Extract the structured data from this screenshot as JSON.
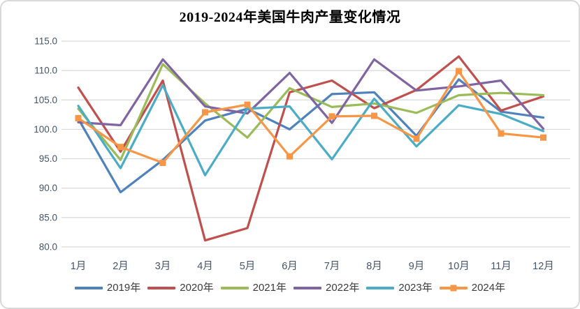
{
  "window": {
    "background_color": "#FFFFFF",
    "border_color": "#D9D9D9"
  },
  "chart_data": {
    "type": "line",
    "title": "2019-2024年美国牛肉产量变化情况",
    "categories": [
      "1月",
      "2月",
      "3月",
      "4月",
      "5月",
      "6月",
      "7月",
      "8月",
      "9月",
      "10月",
      "11月",
      "12月"
    ],
    "series": [
      {
        "name": "2019年",
        "color": "#4F81BD",
        "marker": "none",
        "values": [
          101.8,
          89.3,
          94.8,
          101.5,
          103.5,
          100.0,
          106.0,
          106.3,
          98.9,
          108.5,
          103.0,
          102.0
        ]
      },
      {
        "name": "2020年",
        "color": "#C0504D",
        "marker": "none",
        "values": [
          107.1,
          96.2,
          108.3,
          81.1,
          83.2,
          106.3,
          108.3,
          103.6,
          106.7,
          112.4,
          103.2,
          105.6
        ]
      },
      {
        "name": "2021年",
        "color": "#9BBB59",
        "marker": "none",
        "values": [
          103.5,
          94.8,
          111.1,
          104.4,
          98.6,
          107.0,
          103.8,
          104.4,
          102.8,
          105.8,
          106.2,
          105.8
        ]
      },
      {
        "name": "2022年",
        "color": "#8064A2",
        "marker": "none",
        "values": [
          101.2,
          100.7,
          111.9,
          103.9,
          102.7,
          109.6,
          101.1,
          111.9,
          106.6,
          107.3,
          108.3,
          100.1
        ]
      },
      {
        "name": "2023年",
        "color": "#4BACC6",
        "marker": "none",
        "values": [
          104.0,
          93.4,
          107.5,
          92.2,
          103.5,
          103.9,
          94.9,
          105.2,
          97.1,
          104.1,
          102.6,
          99.7
        ]
      },
      {
        "name": "2024年",
        "color": "#F79646",
        "marker": "square",
        "values": [
          101.9,
          97.0,
          94.3,
          102.9,
          104.2,
          95.4,
          102.2,
          102.3,
          98.4,
          109.9,
          99.3,
          98.6
        ]
      }
    ],
    "ylim": [
      80,
      115
    ],
    "ytick_step": 5,
    "ytick_labels": [
      "80.0",
      "85.0",
      "90.0",
      "95.0",
      "100.0",
      "105.0",
      "110.0",
      "115.0"
    ],
    "xlabel": "",
    "ylabel": "",
    "grid": "horizontal",
    "gridline_color": "#D9D9D9",
    "axis_label_color": "#44546A",
    "legend_position": "bottom",
    "legend_labels": [
      "2019年",
      "2020年",
      "2021年",
      "2022年",
      "2023年",
      "2024年"
    ]
  }
}
